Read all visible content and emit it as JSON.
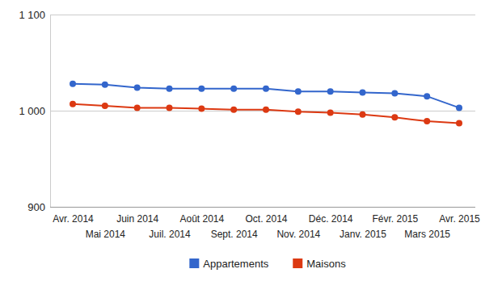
{
  "chart_data": {
    "type": "line",
    "categories": [
      "Avr. 2014",
      "Mai 2014",
      "Juin 2014",
      "Juil. 2014",
      "Août 2014",
      "Sept. 2014",
      "Oct. 2014",
      "Nov. 2014",
      "Déc. 2014",
      "Janv. 2015",
      "Févr. 2015",
      "Mars 2015",
      "Avr. 2015"
    ],
    "series": [
      {
        "name": "Appartements",
        "color": "#3366cc",
        "values": [
          1028,
          1027,
          1024,
          1023,
          1023,
          1023,
          1023,
          1020,
          1020,
          1019,
          1018,
          1015,
          1003
        ]
      },
      {
        "name": "Maisons",
        "color": "#dc3912",
        "values": [
          1007,
          1005,
          1003,
          1003,
          1002,
          1001,
          1001,
          999,
          998,
          996,
          993,
          989,
          987
        ]
      }
    ],
    "ylim": [
      900,
      1100
    ],
    "yticks": [
      900,
      {
        "value": 1000,
        "label": "1 000"
      },
      {
        "value": 1100,
        "label": "1 100"
      }
    ],
    "grid": true,
    "legend": "bottom",
    "marker": "circle",
    "line_style": "solid"
  }
}
